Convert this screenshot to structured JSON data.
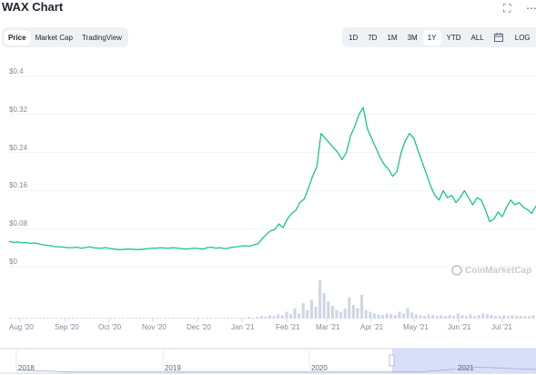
{
  "title": "WAX Chart",
  "icons": {
    "fullscreen": "fullscreen-icon",
    "more": "more-icon"
  },
  "tabs": [
    {
      "label": "Price",
      "active": true
    },
    {
      "label": "Market Cap",
      "active": false
    },
    {
      "label": "TradingView",
      "active": false
    }
  ],
  "ranges": [
    {
      "label": "1D"
    },
    {
      "label": "7D"
    },
    {
      "label": "1M"
    },
    {
      "label": "3M"
    },
    {
      "label": "1Y",
      "active": true
    },
    {
      "label": "YTD"
    },
    {
      "label": "ALL"
    }
  ],
  "log_label": "LOG",
  "watermark": "CoinMarketCap",
  "colors": {
    "line": "#16c784",
    "volume": "#cfd6e4",
    "navigator_fill": "#d0d6f8",
    "grid": "#eff2f5"
  },
  "chart_data": {
    "type": "line",
    "y_ticks": [
      "$0.4",
      "$0.32",
      "$0.24",
      "$0.16",
      "$0.08",
      "$0"
    ],
    "ylim": [
      0,
      0.4
    ],
    "x_ticks": [
      "Aug '20",
      "Sep '20",
      "Oct '20",
      "Nov '20",
      "Dec '20",
      "Jan '21",
      "Feb '21",
      "Mar '21",
      "Apr '21",
      "May '21",
      "Jun '21",
      "Jul '21"
    ],
    "series": [
      {
        "values": [
          0.053,
          0.051,
          0.052,
          0.05,
          0.051,
          0.049,
          0.05,
          0.048,
          0.046,
          0.045,
          0.044,
          0.042,
          0.042,
          0.041,
          0.04,
          0.04,
          0.041,
          0.039,
          0.04,
          0.042,
          0.04,
          0.039,
          0.039,
          0.04,
          0.038,
          0.037,
          0.036,
          0.036,
          0.037,
          0.037,
          0.036,
          0.036,
          0.037,
          0.038,
          0.039,
          0.039,
          0.04,
          0.039,
          0.039,
          0.04,
          0.039,
          0.038,
          0.037,
          0.038,
          0.039,
          0.038,
          0.037,
          0.04,
          0.041,
          0.039,
          0.04,
          0.038,
          0.039,
          0.041,
          0.042,
          0.043,
          0.044,
          0.043,
          0.046,
          0.048,
          0.058,
          0.068,
          0.075,
          0.078,
          0.09,
          0.082,
          0.1,
          0.112,
          0.118,
          0.135,
          0.142,
          0.165,
          0.19,
          0.21,
          0.28,
          0.27,
          0.26,
          0.25,
          0.24,
          0.225,
          0.24,
          0.275,
          0.295,
          0.32,
          0.335,
          0.29,
          0.27,
          0.25,
          0.23,
          0.215,
          0.205,
          0.19,
          0.2,
          0.24,
          0.265,
          0.28,
          0.27,
          0.245,
          0.22,
          0.195,
          0.17,
          0.15,
          0.14,
          0.16,
          0.145,
          0.15,
          0.135,
          0.145,
          0.16,
          0.145,
          0.13,
          0.145,
          0.14,
          0.12,
          0.095,
          0.1,
          0.115,
          0.105,
          0.125,
          0.14,
          0.13,
          0.135,
          0.125,
          0.12,
          0.112,
          0.128
        ]
      }
    ],
    "volume": [
      1,
      1,
      1,
      1,
      1,
      1,
      1,
      1,
      1,
      1,
      1,
      1,
      1,
      1,
      1,
      1,
      1,
      1,
      1,
      1,
      1,
      1,
      1,
      1,
      1,
      1,
      1,
      1,
      1,
      1,
      1,
      1,
      1,
      1,
      1,
      1,
      1,
      1,
      1,
      1,
      1,
      1,
      1,
      1,
      1,
      1,
      1,
      1,
      1,
      1,
      1,
      1,
      1,
      1,
      1,
      1,
      1,
      2,
      1,
      2,
      3,
      2,
      4,
      3,
      5,
      4,
      8,
      5,
      12,
      6,
      18,
      10,
      22,
      14,
      45,
      30,
      20,
      15,
      10,
      8,
      12,
      25,
      16,
      12,
      28,
      10,
      8,
      6,
      5,
      4,
      6,
      5,
      4,
      8,
      6,
      12,
      7,
      5,
      4,
      3,
      5,
      4,
      3,
      4,
      3,
      4,
      3,
      6,
      4,
      3,
      5,
      3,
      4,
      6,
      5,
      4,
      3,
      3,
      4,
      3,
      4,
      3,
      3,
      3,
      3,
      4
    ]
  },
  "navigator": {
    "years": [
      "2018",
      "2019",
      "2020",
      "2021"
    ]
  }
}
